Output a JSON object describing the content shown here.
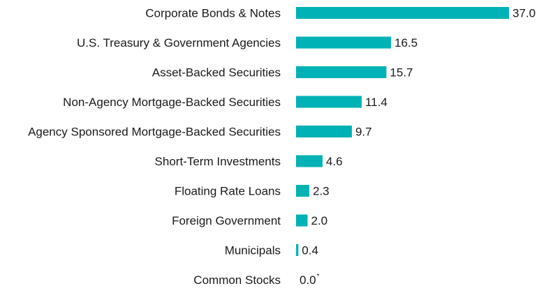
{
  "chart_data": {
    "type": "bar",
    "orientation": "horizontal",
    "categories": [
      "Corporate Bonds & Notes",
      "U.S. Treasury & Government Agencies",
      "Asset-Backed Securities",
      "Non-Agency Mortgage-Backed Securities",
      "Agency Sponsored Mortgage-Backed Securities",
      "Short-Term Investments",
      "Floating Rate Loans",
      "Foreign Government",
      "Municipals",
      "Common Stocks"
    ],
    "values": [
      37.0,
      16.5,
      15.7,
      11.4,
      9.7,
      4.6,
      2.3,
      2.0,
      0.4,
      0.0
    ],
    "value_labels": [
      "37.0",
      "16.5",
      "15.7",
      "11.4",
      "9.7",
      "4.6",
      "2.3",
      "2.0",
      "0.4",
      "0.0"
    ],
    "value_notes": [
      "",
      "",
      "",
      "",
      "",
      "",
      "",
      "",
      "",
      "*"
    ],
    "title": "",
    "xlabel": "",
    "ylabel": "",
    "xlim": [
      0,
      37.0
    ],
    "grid": false,
    "legend": "none",
    "bar_color": "#00b2b5"
  }
}
